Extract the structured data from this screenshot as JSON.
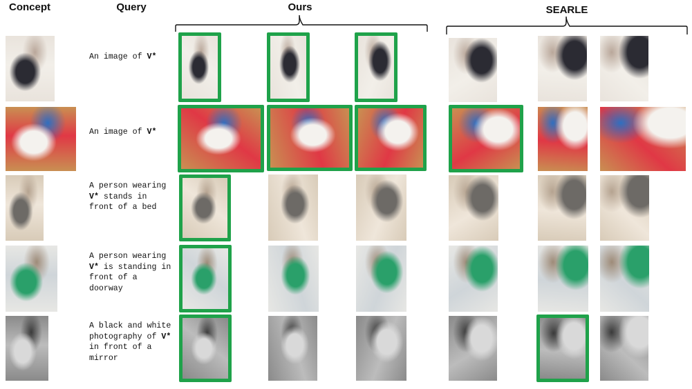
{
  "headers": {
    "concept": "Concept",
    "query": "Query",
    "ours": "Ours",
    "searle": "SEARLE"
  },
  "colors": {
    "highlight": "#1fa24a",
    "brace": "#111111"
  },
  "rows": [
    {
      "query_pre": "An image of ",
      "token": "V*",
      "query_post": "",
      "concept_image": "child wearing black patterned skirt",
      "ours_matches": [
        true,
        true,
        true
      ],
      "searle_matches": [
        false,
        false,
        false
      ]
    },
    {
      "query_pre": "An image of ",
      "token": "V*",
      "query_post": "",
      "concept_image": "white vest with blue flower",
      "ours_matches": [
        true,
        true,
        true
      ],
      "searle_matches": [
        true,
        false,
        false
      ]
    },
    {
      "query_pre": "A person wearing ",
      "token": "V*",
      "query_post": " stands in front of a bed",
      "concept_image": "grey patterned dress",
      "ours_matches": [
        true,
        false,
        false
      ],
      "searle_matches": [
        false,
        false,
        false
      ]
    },
    {
      "query_pre": "A person wearing ",
      "token": "V*",
      "query_post": " is standing in front of a doorway",
      "concept_image": "white t-shirt with green trousers",
      "ours_matches": [
        true,
        false,
        false
      ],
      "searle_matches": [
        false,
        false,
        false
      ]
    },
    {
      "query_pre": "A black and white photography of ",
      "token": "V*",
      "query_post": " in front of a mirror",
      "concept_image": "toy figure with bottle",
      "ours_matches": [
        true,
        false,
        false
      ],
      "searle_matches": [
        false,
        true,
        false
      ]
    }
  ]
}
